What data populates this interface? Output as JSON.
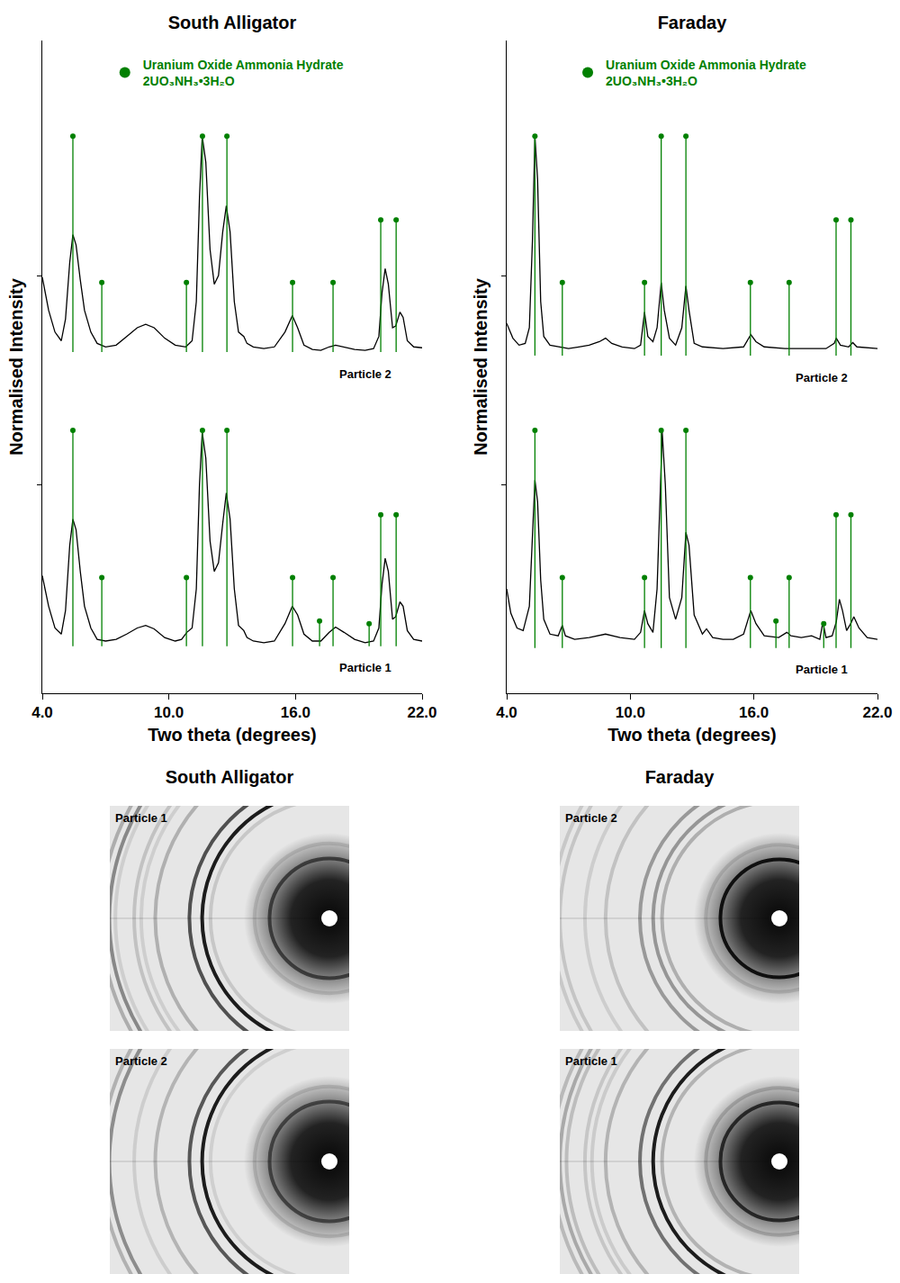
{
  "chart_data": [
    {
      "type": "line",
      "title": "South Alligator",
      "x_label": "Two theta (degrees)",
      "y_label": "Normalised Intensity",
      "xlim": [
        4,
        22
      ],
      "xticks": [
        {
          "value": 4,
          "label": "4.0"
        },
        {
          "value": 10,
          "label": "10.0"
        },
        {
          "value": 16,
          "label": "16.0"
        },
        {
          "value": 22,
          "label": "22.0"
        }
      ],
      "ylim": [
        0,
        750
      ],
      "yticks": [
        240,
        480
      ],
      "tick_labels": "x",
      "grid": false,
      "legend": "top left",
      "series": [
        {
          "name": "Particle 2",
          "color": "#000000",
          "x": [
            4.0,
            4.3,
            4.6,
            4.9,
            5.1,
            5.3,
            5.45,
            5.6,
            5.8,
            6.0,
            6.3,
            6.6,
            7.0,
            7.5,
            8.0,
            8.5,
            8.9,
            9.3,
            9.8,
            10.3,
            10.8,
            11.1,
            11.3,
            11.45,
            11.58,
            11.75,
            11.95,
            12.15,
            12.35,
            12.55,
            12.72,
            12.9,
            13.1,
            13.3,
            13.55,
            13.7,
            14.0,
            14.5,
            15.0,
            15.5,
            15.85,
            16.1,
            16.4,
            16.8,
            17.2,
            17.6,
            17.9,
            18.3,
            18.8,
            19.3,
            19.7,
            19.95,
            20.1,
            20.25,
            20.4,
            20.6,
            20.75,
            20.95,
            21.1,
            21.3,
            21.6,
            22.0
          ],
          "values": [
            478,
            440,
            415,
            405,
            430,
            495,
            527,
            515,
            475,
            440,
            415,
            402,
            398,
            400,
            410,
            420,
            424,
            420,
            408,
            400,
            398,
            405,
            450,
            570,
            640,
            610,
            510,
            470,
            480,
            530,
            560,
            530,
            450,
            415,
            410,
            402,
            398,
            396,
            398,
            415,
            434,
            420,
            400,
            395,
            394,
            398,
            400,
            398,
            395,
            394,
            396,
            410,
            460,
            488,
            470,
            420,
            422,
            438,
            432,
            405,
            398,
            397
          ]
        },
        {
          "name": "Particle 1",
          "color": "#000000",
          "x": [
            4.0,
            4.3,
            4.6,
            4.9,
            5.1,
            5.3,
            5.45,
            5.6,
            5.8,
            6.0,
            6.3,
            6.6,
            7.0,
            7.5,
            8.0,
            8.5,
            8.9,
            9.3,
            9.8,
            10.3,
            10.6,
            10.85,
            11.1,
            11.3,
            11.45,
            11.58,
            11.75,
            11.95,
            12.15,
            12.35,
            12.55,
            12.72,
            12.9,
            13.1,
            13.3,
            13.55,
            13.7,
            14.0,
            14.5,
            15.0,
            15.5,
            15.85,
            16.1,
            16.4,
            16.8,
            17.2,
            17.6,
            17.9,
            18.3,
            18.8,
            19.3,
            19.7,
            19.95,
            20.1,
            20.25,
            20.4,
            20.6,
            20.75,
            20.95,
            21.1,
            21.3,
            21.6,
            22.0
          ],
          "values": [
            135,
            100,
            75,
            68,
            95,
            170,
            200,
            188,
            140,
            100,
            75,
            62,
            60,
            62,
            68,
            75,
            78,
            74,
            64,
            60,
            62,
            70,
            75,
            120,
            240,
            300,
            270,
            175,
            140,
            150,
            195,
            230,
            200,
            120,
            78,
            72,
            64,
            60,
            58,
            60,
            80,
            100,
            90,
            68,
            60,
            60,
            70,
            76,
            70,
            62,
            58,
            60,
            75,
            125,
            155,
            140,
            85,
            88,
            105,
            100,
            72,
            62,
            60
          ]
        }
      ],
      "reference": {
        "name": "Uranium Oxide Ammonia Hydrate",
        "formula": "2UO₃NH₃•3H₂O",
        "color": "#008000",
        "marker": "circle",
        "patterns": [
          {
            "base": 392,
            "x": [
              5.45,
              6.82,
              10.83,
              11.59,
              12.75,
              15.86,
              17.78,
              20.04,
              20.77
            ],
            "values": [
              640,
              472,
              472,
              640,
              640,
              472,
              472,
              544,
              544
            ]
          },
          {
            "base": 54,
            "x": [
              5.45,
              6.82,
              10.83,
              11.59,
              12.75,
              15.86,
              17.14,
              17.78,
              19.49,
              20.04,
              20.77
            ],
            "values": [
              302,
              133,
              133,
              302,
              302,
              133,
              83,
              133,
              80,
              205,
              205
            ]
          }
        ]
      }
    },
    {
      "type": "line",
      "title": "Faraday",
      "x_label": "Two theta (degrees)",
      "y_label": "Normalised Intensity",
      "xlim": [
        4,
        22
      ],
      "xticks": [
        {
          "value": 4,
          "label": "4.0"
        },
        {
          "value": 10,
          "label": "10.0"
        },
        {
          "value": 16,
          "label": "16.0"
        },
        {
          "value": 22,
          "label": "22.0"
        }
      ],
      "ylim": [
        0,
        750
      ],
      "yticks": [
        240,
        480
      ],
      "tick_labels": "x",
      "grid": false,
      "legend": "top left",
      "series": [
        {
          "name": "Particle 2",
          "color": "#000000",
          "x": [
            4.0,
            4.3,
            4.6,
            4.9,
            5.1,
            5.25,
            5.37,
            5.5,
            5.65,
            5.8,
            6.1,
            6.5,
            7.0,
            7.5,
            8.0,
            8.5,
            8.8,
            9.1,
            9.6,
            10.2,
            10.5,
            10.69,
            10.85,
            11.1,
            11.3,
            11.5,
            11.65,
            11.9,
            12.2,
            12.5,
            12.7,
            12.85,
            13.1,
            13.5,
            14.5,
            15.5,
            15.85,
            16.1,
            16.5,
            17.5,
            18.5,
            19.5,
            19.9,
            20.0,
            20.2,
            20.6,
            20.8,
            21.0,
            22.0
          ],
          "values": [
            425,
            408,
            400,
            402,
            420,
            520,
            640,
            590,
            450,
            410,
            400,
            398,
            396,
            398,
            400,
            404,
            408,
            402,
            398,
            396,
            400,
            438,
            410,
            404,
            420,
            472,
            440,
            408,
            400,
            420,
            468,
            440,
            402,
            398,
            396,
            398,
            412,
            404,
            398,
            396,
            396,
            396,
            402,
            408,
            400,
            398,
            403,
            398,
            396
          ]
        },
        {
          "name": "Particle 1",
          "color": "#000000",
          "x": [
            4.0,
            4.2,
            4.5,
            4.8,
            5.1,
            5.25,
            5.37,
            5.5,
            5.65,
            5.8,
            6.1,
            6.5,
            6.7,
            6.85,
            7.3,
            8.0,
            8.8,
            9.5,
            10.2,
            10.5,
            10.69,
            10.85,
            11.1,
            11.3,
            11.45,
            11.55,
            11.7,
            11.9,
            12.2,
            12.5,
            12.7,
            12.85,
            13.1,
            13.5,
            13.7,
            14.0,
            14.5,
            15.0,
            15.5,
            15.85,
            16.1,
            16.5,
            17.2,
            17.6,
            17.8,
            18.3,
            18.8,
            19.2,
            19.35,
            19.5,
            19.8,
            20.0,
            20.15,
            20.3,
            20.5,
            20.7,
            20.85,
            21.1,
            21.5,
            22.0
          ],
          "values": [
            120,
            92,
            75,
            72,
            100,
            190,
            245,
            220,
            130,
            85,
            68,
            66,
            78,
            66,
            62,
            64,
            68,
            64,
            62,
            70,
            95,
            80,
            70,
            120,
            240,
            300,
            240,
            110,
            85,
            110,
            185,
            170,
            90,
            68,
            74,
            64,
            62,
            62,
            68,
            95,
            80,
            66,
            64,
            70,
            66,
            64,
            66,
            62,
            82,
            64,
            66,
            82,
            108,
            95,
            72,
            80,
            88,
            75,
            64,
            62
          ]
        }
      ],
      "reference": {
        "name": "Uranium Oxide Ammonia Hydrate",
        "formula": "2UO₃NH₃•3H₂O",
        "color": "#008000",
        "marker": "circle",
        "patterns": [
          {
            "base": 388,
            "x": [
              5.37,
              6.7,
              10.69,
              11.5,
              12.7,
              15.83,
              17.71,
              19.99,
              20.71
            ],
            "values": [
              640,
              472,
              472,
              640,
              640,
              472,
              472,
              544,
              544
            ]
          },
          {
            "base": 52,
            "x": [
              5.37,
              6.7,
              10.69,
              11.5,
              12.7,
              15.83,
              17.07,
              17.71,
              19.39,
              19.99,
              20.71
            ],
            "values": [
              302,
              133,
              133,
              302,
              302,
              133,
              83,
              133,
              80,
              205,
              205
            ]
          }
        ]
      }
    }
  ],
  "images": [
    {
      "title": "South Alligator",
      "panels": [
        "Particle 1",
        "Particle 2"
      ]
    },
    {
      "title": "Faraday",
      "panels": [
        "Particle 2",
        "Particle 1"
      ]
    }
  ]
}
